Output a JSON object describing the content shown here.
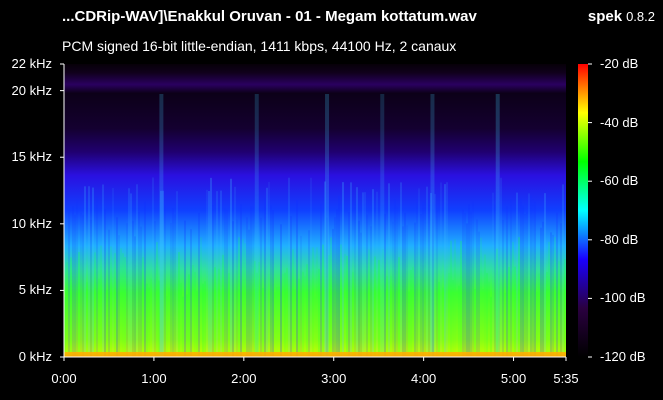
{
  "header": {
    "file_title": "...CDRip-WAV]\\Enakkul Oruvan - 01 - Megam kottatum.wav",
    "app_name": "spek",
    "app_version": "0.8.2",
    "stream_info": "PCM signed 16-bit little-endian, 1411 kbps, 44100 Hz, 2 canaux"
  },
  "chart_data": {
    "type": "heatmap",
    "y_axis": {
      "unit": "kHz",
      "range": [
        0,
        22
      ],
      "ticks": [
        {
          "value": 0,
          "label": "0 kHz"
        },
        {
          "value": 5,
          "label": "5 kHz"
        },
        {
          "value": 10,
          "label": "10 kHz"
        },
        {
          "value": 15,
          "label": "15 kHz"
        },
        {
          "value": 20,
          "label": "20 kHz"
        },
        {
          "value": 22,
          "label": "22 kHz"
        }
      ]
    },
    "x_axis": {
      "unit": "time",
      "range_seconds": [
        0,
        335
      ],
      "ticks": [
        {
          "value": 0,
          "label": "0:00"
        },
        {
          "value": 60,
          "label": "1:00"
        },
        {
          "value": 120,
          "label": "2:00"
        },
        {
          "value": 180,
          "label": "3:00"
        },
        {
          "value": 240,
          "label": "4:00"
        },
        {
          "value": 300,
          "label": "5:00"
        },
        {
          "value": 335,
          "label": "5:35"
        }
      ]
    },
    "color_scale": {
      "unit": "dB",
      "range": [
        -120,
        -20
      ],
      "ticks": [
        {
          "value": -20,
          "label": "-20 dB"
        },
        {
          "value": -40,
          "label": "-40 dB"
        },
        {
          "value": -60,
          "label": "-60 dB"
        },
        {
          "value": -80,
          "label": "-80 dB"
        },
        {
          "value": -100,
          "label": "-100 dB"
        },
        {
          "value": -120,
          "label": "-120 dB"
        }
      ],
      "colors": [
        "#000000",
        "#2a0040",
        "#1a00ff",
        "#00ffff",
        "#00ff00",
        "#ffff00",
        "#ff0000"
      ]
    }
  }
}
